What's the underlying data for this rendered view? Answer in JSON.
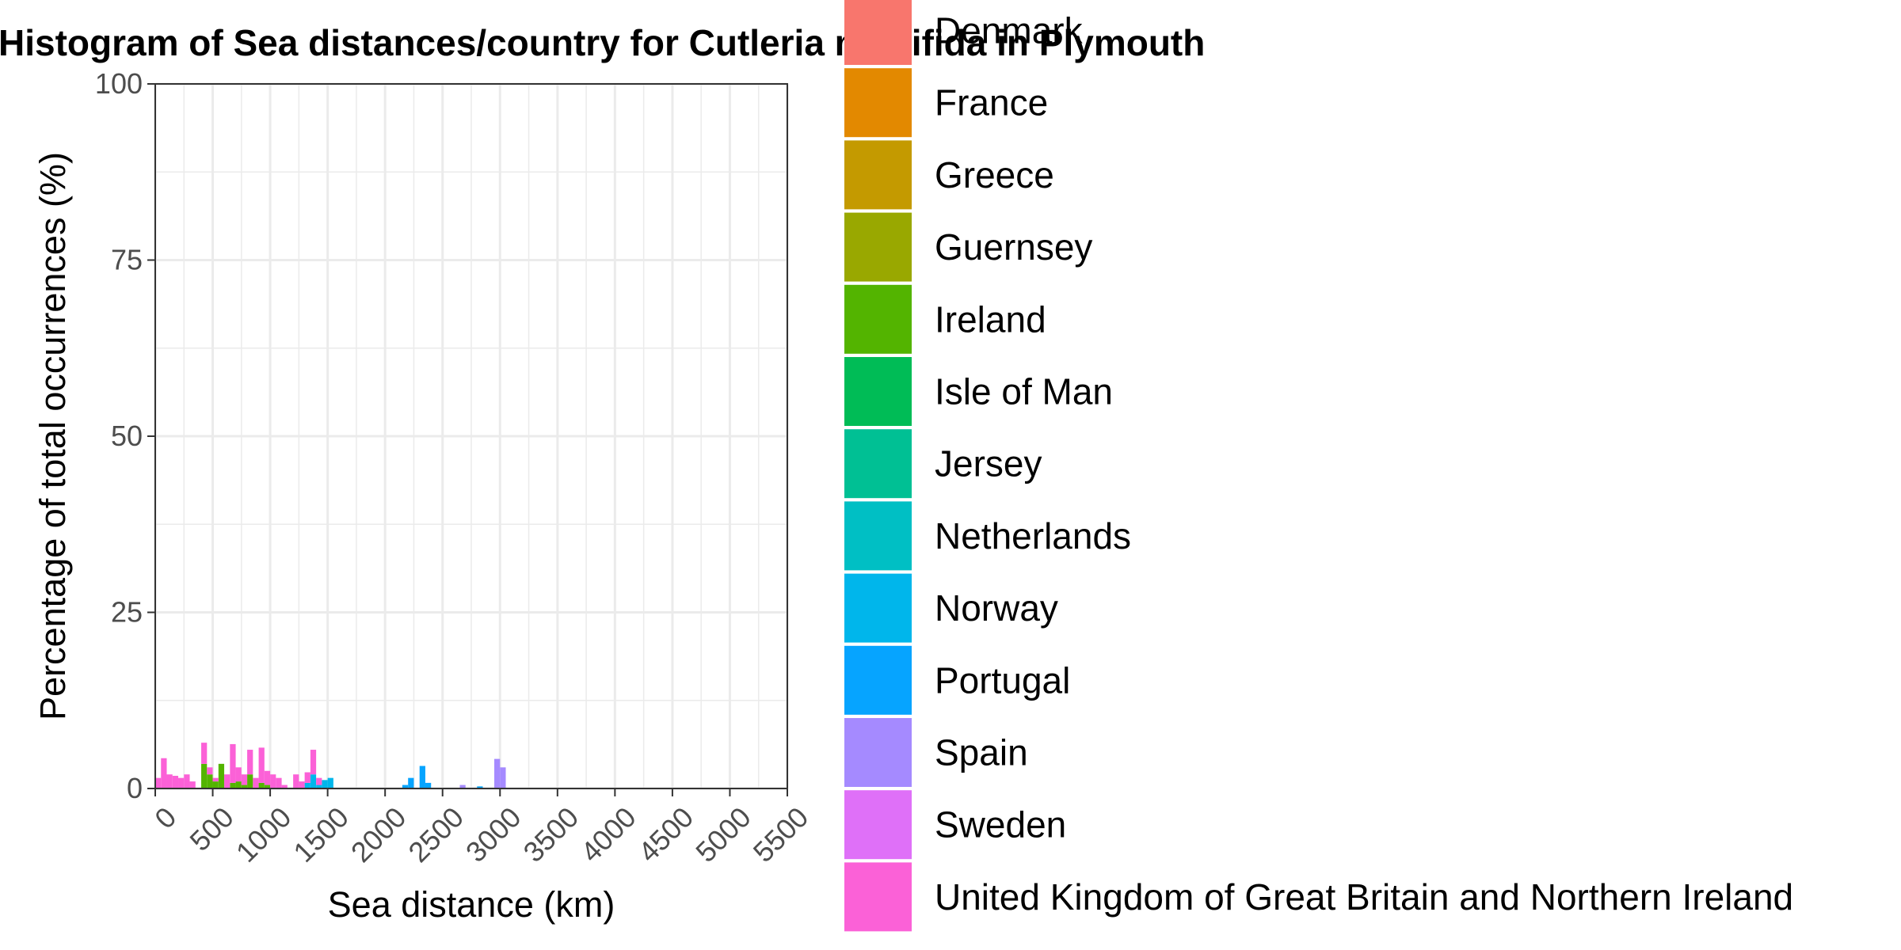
{
  "chart_data": {
    "type": "bar",
    "title": "Histogram of Sea distances/country for Cutleria multifida in Plymouth",
    "xlabel": "Sea distance (km)",
    "ylabel": "Percentage of total occurrences (%)",
    "xlim": [
      0,
      5500
    ],
    "ylim": [
      0,
      100
    ],
    "x_ticks": [
      "0",
      "500",
      "1000",
      "1500",
      "2000",
      "2500",
      "3000",
      "3500",
      "4000",
      "4500",
      "5000",
      "5500"
    ],
    "y_ticks": [
      "0",
      "25",
      "50",
      "75",
      "100"
    ],
    "grid": true,
    "legend_position": "right",
    "bin_width": 50,
    "series": [
      {
        "name": "Denmark",
        "color": "#F8766D",
        "bins": []
      },
      {
        "name": "France",
        "color": "#E38900",
        "bins": []
      },
      {
        "name": "Greece",
        "color": "#C49A00",
        "bins": []
      },
      {
        "name": "Guernsey",
        "color": "#99A800",
        "bins": []
      },
      {
        "name": "Ireland",
        "color": "#53B400",
        "bins": [
          [
            400,
            3.5
          ],
          [
            450,
            2.0
          ],
          [
            500,
            1.0
          ],
          [
            550,
            3.5
          ],
          [
            650,
            0.8
          ],
          [
            700,
            1.0
          ],
          [
            750,
            0.5
          ],
          [
            800,
            2.0
          ],
          [
            900,
            0.8
          ],
          [
            950,
            0.5
          ]
        ]
      },
      {
        "name": "Isle of Man",
        "color": "#00BC56",
        "bins": []
      },
      {
        "name": "Jersey",
        "color": "#00C094",
        "bins": []
      },
      {
        "name": "Netherlands",
        "color": "#00BFC4",
        "bins": []
      },
      {
        "name": "Norway",
        "color": "#00B6EB",
        "bins": [
          [
            1300,
            0.8
          ],
          [
            1350,
            2.0
          ],
          [
            1400,
            0.5
          ],
          [
            1450,
            1.2
          ],
          [
            1500,
            1.5
          ]
        ]
      },
      {
        "name": "Portugal",
        "color": "#06A4FF",
        "bins": [
          [
            2150,
            0.5
          ],
          [
            2200,
            1.5
          ],
          [
            2300,
            3.2
          ],
          [
            2350,
            0.8
          ],
          [
            2800,
            0.3
          ]
        ]
      },
      {
        "name": "Spain",
        "color": "#A58AFF",
        "bins": [
          [
            2650,
            0.5
          ],
          [
            2950,
            4.2
          ],
          [
            3000,
            3.0
          ]
        ]
      },
      {
        "name": "Sweden",
        "color": "#DF70F8",
        "bins": []
      },
      {
        "name": "United Kingdom of Great Britain and Northern Ireland",
        "color": "#FB61D7",
        "bins": [
          [
            0,
            1.5
          ],
          [
            50,
            4.3
          ],
          [
            100,
            2.0
          ],
          [
            150,
            1.8
          ],
          [
            200,
            1.5
          ],
          [
            250,
            2.0
          ],
          [
            300,
            1.0
          ],
          [
            400,
            3.0
          ],
          [
            450,
            1.0
          ],
          [
            500,
            0.5
          ],
          [
            600,
            2.0
          ],
          [
            650,
            5.5
          ],
          [
            700,
            2.0
          ],
          [
            750,
            1.5
          ],
          [
            800,
            3.5
          ],
          [
            850,
            1.5
          ],
          [
            900,
            5.0
          ],
          [
            950,
            2.0
          ],
          [
            1000,
            2.0
          ],
          [
            1050,
            1.5
          ],
          [
            1100,
            0.5
          ],
          [
            1200,
            2.0
          ],
          [
            1250,
            1.0
          ],
          [
            1300,
            1.5
          ],
          [
            1350,
            3.5
          ],
          [
            1400,
            1.0
          ]
        ]
      }
    ]
  }
}
